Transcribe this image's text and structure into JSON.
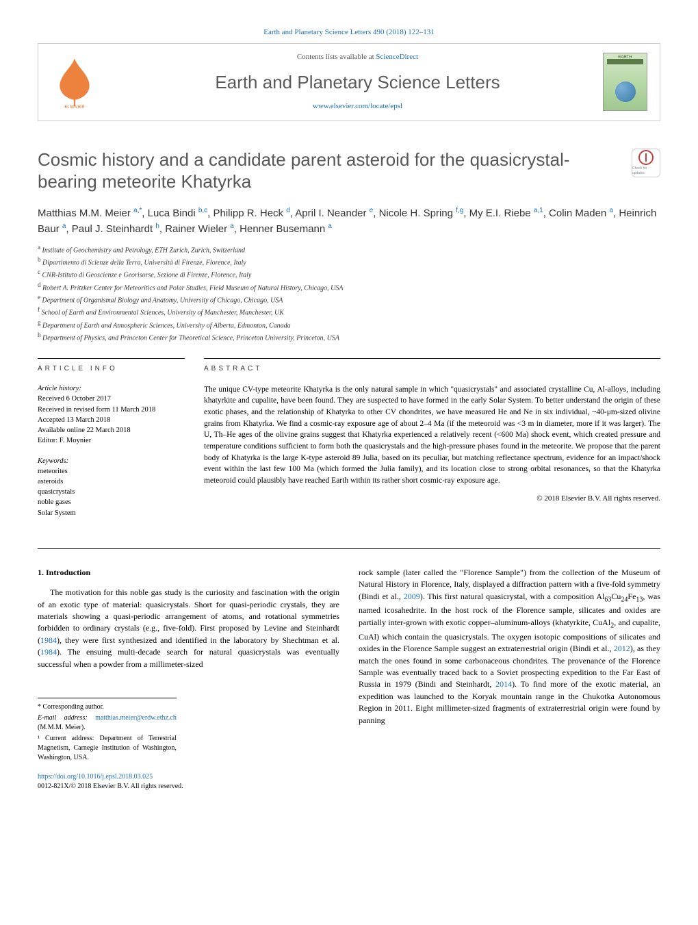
{
  "top_citation": "Earth and Planetary Science Letters 490 (2018) 122–131",
  "header": {
    "contents_prefix": "Contents lists available at ",
    "contents_link": "ScienceDirect",
    "journal_name": "Earth and Planetary Science Letters",
    "journal_url": "www.elsevier.com/locate/epsl",
    "cover_label": "EARTH"
  },
  "crossmark_label": "Check for updates",
  "title": "Cosmic history and a candidate parent asteroid for the quasicrystal-bearing meteorite Khatyrka",
  "authors_html": "Matthias M.M. Meier <sup class='auth-sup'>a,*</sup>, Luca Bindi <sup class='auth-sup'>b,c</sup>, Philipp R. Heck <sup class='auth-sup'>d</sup>, April I. Neander <sup class='auth-sup'>e</sup>, Nicole H. Spring <sup class='auth-sup'>f,g</sup>, My E.I. Riebe <sup class='auth-sup'>a,1</sup>, Colin Maden <sup class='auth-sup'>a</sup>, Heinrich Baur <sup class='auth-sup'>a</sup>, Paul J. Steinhardt <sup class='auth-sup'>h</sup>, Rainer Wieler <sup class='auth-sup'>a</sup>, Henner Busemann <sup class='auth-sup'>a</sup>",
  "affiliations": [
    {
      "key": "a",
      "text": "Institute of Geochemistry and Petrology, ETH Zurich, Zurich, Switzerland"
    },
    {
      "key": "b",
      "text": "Dipartimento di Scienze della Terra, Università di Firenze, Florence, Italy"
    },
    {
      "key": "c",
      "text": "CNR-Istituto di Geoscienze e Georisorse, Sezione di Firenze, Florence, Italy"
    },
    {
      "key": "d",
      "text": "Robert A. Pritzker Center for Meteoritics and Polar Studies, Field Museum of Natural History, Chicago, USA"
    },
    {
      "key": "e",
      "text": "Department of Organismal Biology and Anatomy, University of Chicago, Chicago, USA"
    },
    {
      "key": "f",
      "text": "School of Earth and Environmental Sciences, University of Manchester, Manchester, UK"
    },
    {
      "key": "g",
      "text": "Department of Earth and Atmospheric Sciences, University of Alberta, Edmonton, Canada"
    },
    {
      "key": "h",
      "text": "Department of Physics, and Princeton Center for Theoretical Science, Princeton University, Princeton, USA"
    }
  ],
  "article_info": {
    "heading": "ARTICLE INFO",
    "history_label": "Article history:",
    "history": [
      "Received 6 October 2017",
      "Received in revised form 11 March 2018",
      "Accepted 13 March 2018",
      "Available online 22 March 2018",
      "Editor: F. Moynier"
    ],
    "keywords_label": "Keywords:",
    "keywords": [
      "meteorites",
      "asteroids",
      "quasicrystals",
      "noble gases",
      "Solar System"
    ]
  },
  "abstract": {
    "heading": "ABSTRACT",
    "text": "The unique CV-type meteorite Khatyrka is the only natural sample in which \"quasicrystals\" and associated crystalline Cu, Al-alloys, including khatyrkite and cupalite, have been found. They are suspected to have formed in the early Solar System. To better understand the origin of these exotic phases, and the relationship of Khatyrka to other CV chondrites, we have measured He and Ne in six individual, ~40-μm-sized olivine grains from Khatyrka. We find a cosmic-ray exposure age of about 2–4 Ma (if the meteoroid was <3 m in diameter, more if it was larger). The U, Th–He ages of the olivine grains suggest that Khatyrka experienced a relatively recent (<600 Ma) shock event, which created pressure and temperature conditions sufficient to form both the quasicrystals and the high-pressure phases found in the meteorite. We propose that the parent body of Khatyrka is the large K-type asteroid 89 Julia, based on its peculiar, but matching reflectance spectrum, evidence for an impact/shock event within the last few 100 Ma (which formed the Julia family), and its location close to strong orbital resonances, so that the Khatyrka meteoroid could plausibly have reached Earth within its rather short cosmic-ray exposure age.",
    "copyright": "© 2018 Elsevier B.V. All rights reserved."
  },
  "body": {
    "section_number": "1.",
    "section_title": "Introduction",
    "col1_html": "The motivation for this noble gas study is the curiosity and fascination with the origin of an exotic type of material: quasicrystals. Short for quasi-periodic crystals, they are materials showing a quasi-periodic arrangement of atoms, and rotational symmetries forbidden to ordinary crystals (e.g., five-fold). First proposed by Levine and Steinhardt (<span class='ref-link'>1984</span>), they were first synthesized and identified in the laboratory by Shechtman et al. (<span class='ref-link'>1984</span>). The ensuing multi-decade search for natural quasicrystals was eventually successful when a powder from a millimeter-sized",
    "col2_html": "rock sample (later called the \"Florence Sample\") from the collection of the Museum of Natural History in Florence, Italy, displayed a diffraction pattern with a five-fold symmetry (Bindi et al., <span class='ref-link'>2009</span>). This first natural quasicrystal, with a composition Al<sub>63</sub>Cu<sub>24</sub>Fe<sub>13</sub>, was named icosahedrite. In the host rock of the Florence sample, silicates and oxides are partially inter-grown with exotic copper–aluminum-alloys (khatyrkite, CuAl<sub>2</sub>, and cupalite, CuAl) which contain the quasicrystals. The oxygen isotopic compositions of silicates and oxides in the Florence Sample suggest an extraterrestrial origin (Bindi et al., <span class='ref-link'>2012</span>), as they match the ones found in some carbonaceous chondrites. The provenance of the Florence Sample was eventually traced back to a Soviet prospecting expedition to the Far East of Russia in 1979 (Bindi and Steinhardt, <span class='ref-link'>2014</span>). To find more of the exotic material, an expedition was launched to the Koryak mountain range in the Chukotka Autonomous Region in 2011. Eight millimeter-sized fragments of extraterrestrial origin were found by panning"
  },
  "footnotes": {
    "corr": "* Corresponding author.",
    "email_label": "E-mail address:",
    "email": "matthias.meier@erdw.ethz.ch",
    "email_person": "(M.M.M. Meier).",
    "note1": "¹ Current address: Department of Terrestrial Magnetism, Carnegie Institution of Washington, Washington, USA."
  },
  "bottom": {
    "doi": "https://doi.org/10.1016/j.epsl.2018.03.025",
    "issn_line": "0012-821X/© 2018 Elsevier B.V. All rights reserved."
  },
  "colors": {
    "link": "#1a6eb8",
    "elsevier_orange": "#eb6d1e",
    "heading_gray": "#575757"
  }
}
